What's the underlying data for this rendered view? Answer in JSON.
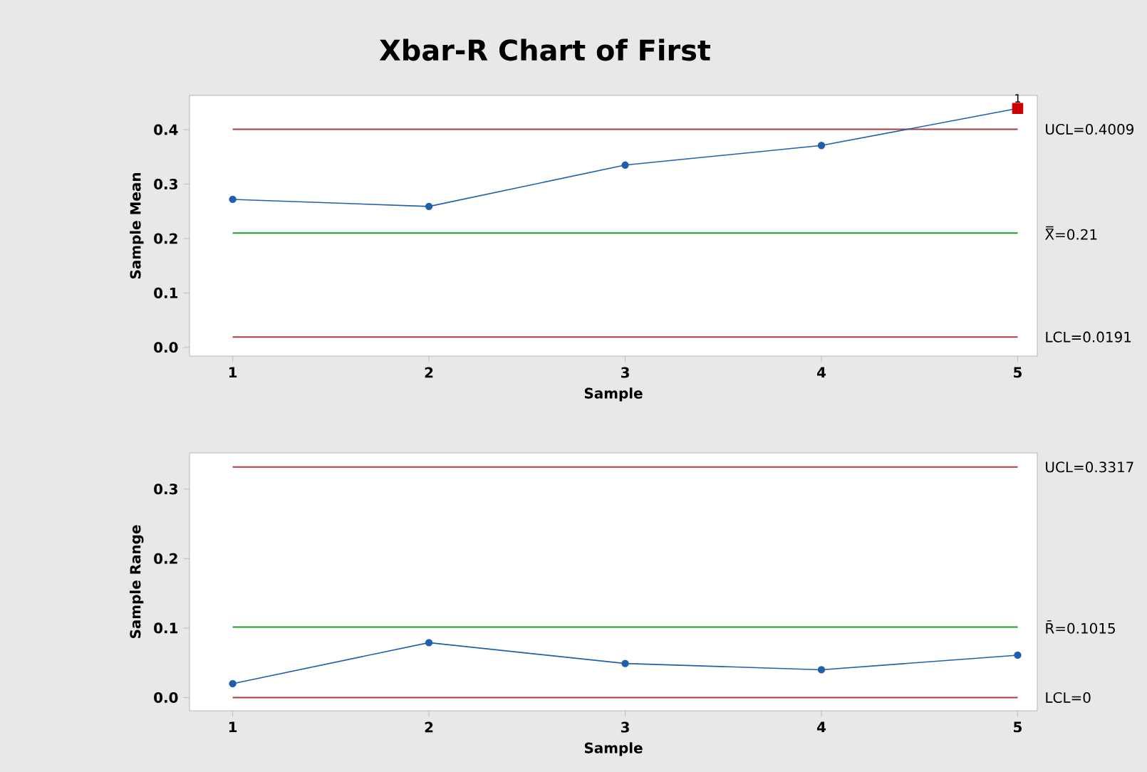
{
  "chart_data": [
    {
      "type": "line",
      "title": "Xbar-R Chart of First",
      "xlabel": "Sample",
      "ylabel": "Sample Mean",
      "x": [
        1,
        2,
        3,
        4,
        5
      ],
      "xlim": [
        0.78,
        5.1
      ],
      "xticks": [
        1,
        2,
        3,
        4,
        5
      ],
      "ylim": [
        -0.016,
        0.463
      ],
      "yticks": [
        {
          "value": 0,
          "label": "0.0"
        },
        0.1,
        0.2,
        0.3,
        0.4
      ],
      "marker": "circle",
      "series": [
        {
          "color": "#1f5fad",
          "values": [
            0.272,
            0.259,
            0.335,
            0.371,
            0.439
          ]
        },
        {
          "type": "scatter",
          "marker": "square",
          "color": "#cc0000",
          "x": [
            5
          ],
          "values": [
            0.439
          ]
        }
      ],
      "ref_lines": [
        {
          "axis": "y",
          "value": 0.4009,
          "label": "UCL=0.4009",
          "color": "#b03a3a"
        },
        {
          "axis": "y",
          "value": 0.21,
          "label": "X̿=0.21",
          "color": "#1f9a2a"
        },
        {
          "axis": "y",
          "value": 0.0191,
          "label": "LCL=0.0191",
          "color": "#b03a3a"
        }
      ],
      "annotations": [
        {
          "text": "1",
          "x": 5,
          "y": 0.439
        }
      ]
    },
    {
      "type": "line",
      "xlabel": "Sample",
      "ylabel": "Sample Range",
      "x": [
        1,
        2,
        3,
        4,
        5
      ],
      "xlim": [
        0.78,
        5.1
      ],
      "xticks": [
        1,
        2,
        3,
        4,
        5
      ],
      "ylim": [
        -0.019,
        0.352
      ],
      "yticks": [
        {
          "value": 0,
          "label": "0.0"
        },
        0.1,
        0.2,
        0.3
      ],
      "marker": "circle",
      "series": [
        {
          "color": "#1f5fad",
          "values": [
            0.02,
            0.079,
            0.049,
            0.04,
            0.061
          ]
        }
      ],
      "ref_lines": [
        {
          "axis": "y",
          "value": 0.3317,
          "label": "UCL=0.3317",
          "color": "#b03a3a"
        },
        {
          "axis": "y",
          "value": 0.1015,
          "label": "R̄=0.1015",
          "color": "#1f9a2a"
        },
        {
          "axis": "y",
          "value": 0,
          "label": "LCL=0",
          "color": "#b03a3a"
        }
      ]
    }
  ]
}
